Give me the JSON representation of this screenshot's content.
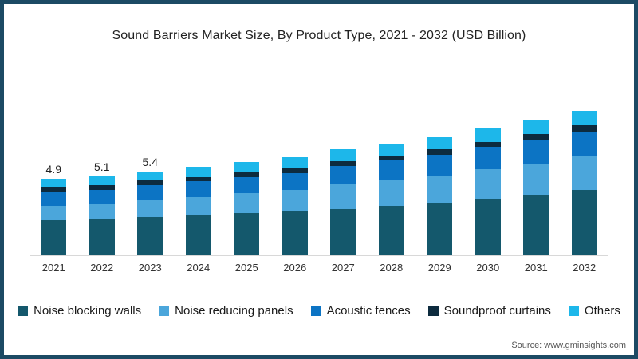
{
  "frame": {
    "border_color": "#1C4A64",
    "background": "#FFFFFF"
  },
  "title": "Sound Barriers Market Size, By Product Type, 2021 - 2032 (USD Billion)",
  "source": "Source: www.gminsights.com",
  "chart_data": {
    "type": "bar",
    "stacked": true,
    "title": "Sound Barriers Market Size, By Product Type, 2021 - 2032 (USD Billion)",
    "unit": "USD Billion",
    "xlabel": "",
    "ylabel": "",
    "ylim": [
      0,
      10
    ],
    "grid": false,
    "legend_position": "bottom",
    "categories": [
      "2021",
      "2022",
      "2023",
      "2024",
      "2025",
      "2026",
      "2027",
      "2028",
      "2029",
      "2030",
      "2031",
      "2032"
    ],
    "bar_labels": [
      "4.9",
      "5.1",
      "5.4",
      "",
      "",
      "",
      "",
      "",
      "",
      "",
      "",
      ""
    ],
    "totals": [
      4.9,
      5.1,
      5.4,
      5.7,
      6.0,
      6.3,
      6.8,
      7.2,
      7.6,
      8.2,
      8.7,
      9.3
    ],
    "series": [
      {
        "name": "Noise blocking walls",
        "color": "#14586C",
        "values": [
          2.25,
          2.3,
          2.45,
          2.55,
          2.7,
          2.8,
          3.0,
          3.2,
          3.4,
          3.65,
          3.9,
          4.2
        ]
      },
      {
        "name": "Noise reducing panels",
        "color": "#4BA6DB",
        "values": [
          0.95,
          1.0,
          1.1,
          1.2,
          1.3,
          1.4,
          1.55,
          1.65,
          1.75,
          1.9,
          2.0,
          2.2
        ]
      },
      {
        "name": "Acoustic fences",
        "color": "#0C74C4",
        "values": [
          0.85,
          0.9,
          0.95,
          1.0,
          1.05,
          1.1,
          1.2,
          1.25,
          1.3,
          1.4,
          1.5,
          1.55
        ]
      },
      {
        "name": "Soundproof curtains",
        "color": "#0D2B3E",
        "values": [
          0.3,
          0.3,
          0.3,
          0.3,
          0.3,
          0.3,
          0.3,
          0.3,
          0.35,
          0.35,
          0.4,
          0.4
        ]
      },
      {
        "name": "Others",
        "color": "#1DB7EA",
        "values": [
          0.55,
          0.6,
          0.6,
          0.65,
          0.65,
          0.7,
          0.75,
          0.8,
          0.8,
          0.9,
          0.9,
          0.95
        ]
      }
    ]
  }
}
